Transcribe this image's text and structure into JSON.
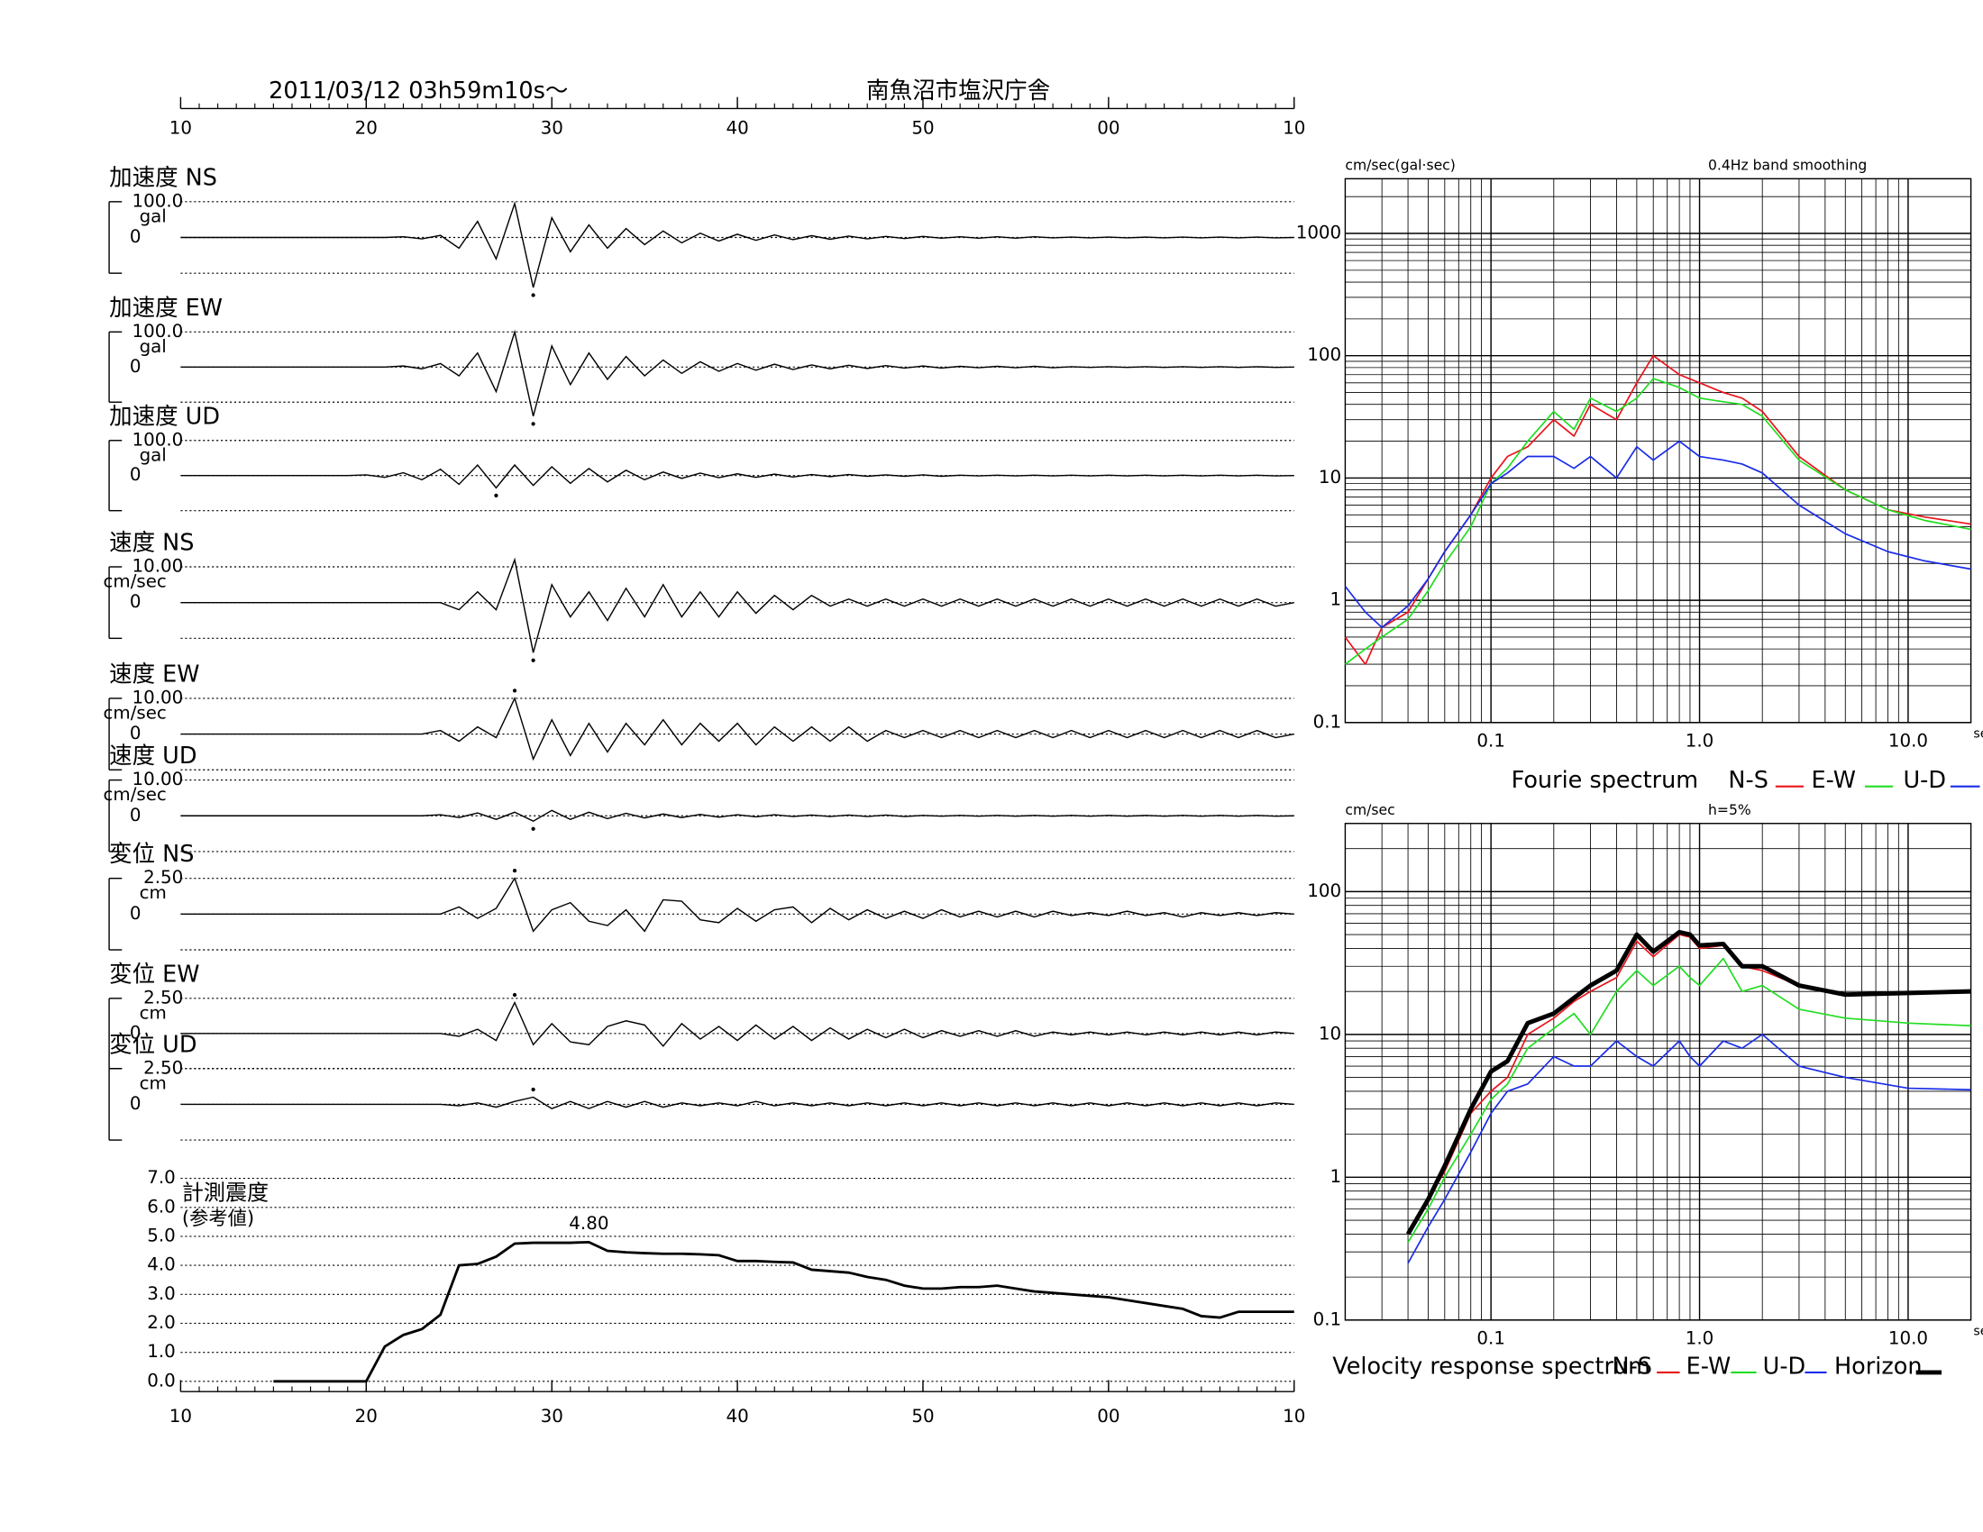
{
  "header": {
    "date": "2011/03/12  03h59m10s〜",
    "station": "南魚沼市塩沢庁舎"
  },
  "time_axis": {
    "xlim": [
      10,
      70
    ],
    "xticks": [
      10,
      20,
      30,
      40,
      50,
      {
        "value": 60,
        "label": "00"
      },
      {
        "value": 70,
        "label": "10"
      }
    ],
    "x": [
      10,
      11,
      12,
      13,
      14,
      15,
      16,
      17,
      18,
      19,
      20,
      21,
      22,
      23,
      24,
      25,
      26,
      27,
      28,
      29,
      30,
      31,
      32,
      33,
      34,
      35,
      36,
      37,
      38,
      39,
      40,
      41,
      42,
      43,
      44,
      45,
      46,
      47,
      48,
      49,
      50,
      51,
      52,
      53,
      54,
      55,
      56,
      57,
      58,
      59,
      60,
      61,
      62,
      63,
      64,
      65,
      66,
      67,
      68,
      69,
      70
    ]
  },
  "chart_data": [
    {
      "type": "trace",
      "title": "加速度 NS",
      "unit": "gal",
      "ylim": [
        -100,
        100
      ],
      "yticks": [
        0,
        {
          "value": 100,
          "label": "100.0"
        }
      ],
      "values": [
        0,
        0,
        0,
        0,
        0,
        0,
        0,
        0,
        0,
        0,
        0,
        0,
        2,
        -4,
        6,
        -30,
        45,
        -60,
        95,
        -140,
        55,
        -40,
        35,
        -30,
        25,
        -20,
        18,
        -15,
        12,
        -10,
        9,
        -8,
        7,
        -6,
        5,
        -5,
        4,
        -4,
        3,
        -3,
        3,
        -2,
        2,
        -2,
        2,
        -2,
        2,
        -1,
        1,
        -1,
        1,
        -1,
        1,
        -1,
        1,
        -1,
        1,
        -1,
        1,
        -1,
        0
      ]
    },
    {
      "type": "trace",
      "title": "加速度 EW",
      "unit": "gal",
      "ylim": [
        -100,
        100
      ],
      "yticks": [
        0,
        {
          "value": 100,
          "label": "100.0"
        }
      ],
      "values": [
        0,
        0,
        0,
        0,
        0,
        0,
        0,
        0,
        0,
        0,
        0,
        0,
        3,
        -5,
        10,
        -25,
        40,
        -70,
        100,
        -140,
        60,
        -50,
        40,
        -35,
        30,
        -25,
        20,
        -18,
        15,
        -12,
        10,
        -9,
        8,
        -7,
        6,
        -5,
        5,
        -4,
        4,
        -3,
        3,
        -3,
        2,
        -2,
        2,
        -2,
        2,
        -2,
        1,
        -1,
        1,
        -1,
        1,
        -1,
        1,
        -1,
        1,
        -1,
        1,
        -1,
        0
      ]
    },
    {
      "type": "trace",
      "title": "加速度 UD",
      "unit": "gal",
      "ylim": [
        -100,
        100
      ],
      "yticks": [
        0,
        {
          "value": 100,
          "label": "100.0"
        }
      ],
      "values": [
        0,
        0,
        0,
        0,
        0,
        0,
        0,
        0,
        0,
        0,
        2,
        -5,
        8,
        -12,
        18,
        -25,
        30,
        -35,
        30,
        -28,
        25,
        -22,
        20,
        -18,
        15,
        -12,
        10,
        -8,
        7,
        -6,
        5,
        -5,
        4,
        -4,
        3,
        -3,
        3,
        -2,
        2,
        -2,
        2,
        -2,
        1,
        -1,
        1,
        -1,
        1,
        -1,
        1,
        -1,
        1,
        -1,
        1,
        -1,
        1,
        -1,
        1,
        -1,
        1,
        -1,
        0
      ]
    },
    {
      "type": "trace",
      "title": "速度 NS",
      "unit": "cm/sec",
      "ylim": [
        -10,
        10
      ],
      "yticks": [
        0,
        {
          "value": 10,
          "label": "10.00"
        }
      ],
      "values": [
        0,
        0,
        0,
        0,
        0,
        0,
        0,
        0,
        0,
        0,
        0,
        0,
        0,
        0,
        0,
        -2,
        3,
        -2,
        12,
        -14,
        5,
        -4,
        3,
        -5,
        4,
        -4,
        5,
        -4,
        3,
        -4,
        3,
        -3,
        2,
        -2,
        2,
        -1,
        1,
        -1,
        1,
        -1,
        1,
        -1,
        1,
        -1,
        1,
        -1,
        1,
        -1,
        1,
        -1,
        1,
        -1,
        1,
        -1,
        1,
        -1,
        1,
        -1,
        1,
        -1,
        0
      ]
    },
    {
      "type": "trace",
      "title": "速度 EW",
      "unit": "cm/sec",
      "ylim": [
        -10,
        10
      ],
      "yticks": [
        0,
        {
          "value": 10,
          "label": "10.00"
        }
      ],
      "values": [
        0,
        0,
        0,
        0,
        0,
        0,
        0,
        0,
        0,
        0,
        0,
        0,
        0,
        0,
        1,
        -2,
        2,
        -1,
        10,
        -7,
        4,
        -6,
        3,
        -5,
        3,
        -3,
        4,
        -3,
        3,
        -2,
        3,
        -3,
        2,
        -2,
        2,
        -2,
        2,
        -2,
        1,
        -1,
        1,
        -1,
        1,
        -1,
        1,
        -1,
        1,
        -1,
        1,
        -1,
        1,
        -1,
        1,
        -1,
        1,
        -1,
        1,
        -1,
        1,
        -1,
        0
      ]
    },
    {
      "type": "trace",
      "title": "速度 UD",
      "unit": "cm/sec",
      "ylim": [
        -10,
        10
      ],
      "yticks": [
        0,
        {
          "value": 10,
          "label": "10.00"
        }
      ],
      "values": [
        0,
        0,
        0,
        0,
        0,
        0,
        0,
        0,
        0,
        0,
        0,
        0,
        0,
        0,
        0.3,
        -0.5,
        0.8,
        -1,
        1,
        -1.5,
        1.5,
        -1,
        1,
        -0.8,
        0.7,
        -0.6,
        0.5,
        -0.5,
        0.4,
        -0.4,
        0.3,
        -0.3,
        0.3,
        -0.2,
        0.2,
        -0.2,
        0.2,
        -0.2,
        0.2,
        -0.2,
        0.1,
        -0.1,
        0.1,
        -0.1,
        0.1,
        -0.1,
        0.1,
        -0.1,
        0.1,
        -0.1,
        0.1,
        -0.1,
        0.1,
        -0.1,
        0.1,
        -0.1,
        0.1,
        -0.1,
        0.1,
        -0.1,
        0
      ]
    },
    {
      "type": "trace",
      "title": "変位 NS",
      "unit": "cm",
      "ylim": [
        -2.5,
        2.5
      ],
      "yticks": [
        0,
        {
          "value": 2.5,
          "label": "2.50"
        }
      ],
      "values": [
        0,
        0,
        0,
        0,
        0,
        0,
        0,
        0,
        0,
        0,
        0,
        0,
        0,
        0,
        0,
        0.5,
        -0.3,
        0.4,
        2.5,
        -1.2,
        0.3,
        0.8,
        -0.5,
        -0.8,
        0.3,
        -1.2,
        1.0,
        0.9,
        -0.4,
        -0.6,
        0.4,
        -0.5,
        0.3,
        0.5,
        -0.6,
        0.4,
        -0.4,
        0.3,
        -0.3,
        0.2,
        -0.3,
        0.3,
        -0.2,
        0.2,
        -0.2,
        0.2,
        -0.2,
        0.2,
        -0.1,
        0.1,
        -0.1,
        0.2,
        -0.1,
        0.1,
        -0.2,
        0.1,
        -0.1,
        0.1,
        -0.1,
        0.1,
        0
      ]
    },
    {
      "type": "trace",
      "title": "変位 EW",
      "unit": "cm",
      "ylim": [
        -2.5,
        2.5
      ],
      "yticks": [
        0,
        {
          "value": 2.5,
          "label": "2.50"
        }
      ],
      "values": [
        0,
        0,
        0,
        0,
        0,
        0,
        0,
        0,
        0,
        0,
        0,
        0,
        0,
        0,
        0,
        -0.2,
        0.3,
        -0.5,
        2.2,
        -0.8,
        0.7,
        -0.6,
        -0.8,
        0.5,
        0.9,
        0.6,
        -0.9,
        0.7,
        -0.4,
        0.5,
        -0.5,
        0.6,
        -0.4,
        0.5,
        -0.5,
        0.4,
        -0.4,
        0.3,
        -0.3,
        0.3,
        -0.3,
        0.2,
        -0.2,
        0.2,
        -0.2,
        0.2,
        -0.2,
        0.1,
        -0.1,
        0.1,
        -0.1,
        0.1,
        -0.1,
        0.1,
        -0.1,
        0.1,
        -0.1,
        0.1,
        -0.1,
        0.1,
        0
      ]
    },
    {
      "type": "trace",
      "title": "変位 UD",
      "unit": "cm",
      "ylim": [
        -2.5,
        2.5
      ],
      "yticks": [
        0,
        {
          "value": 2.5,
          "label": "2.50"
        }
      ],
      "values": [
        0,
        0,
        0,
        0,
        0,
        0,
        0,
        0,
        0,
        0,
        0,
        0,
        0,
        0,
        0,
        -0.1,
        0.1,
        -0.2,
        0.2,
        0.5,
        -0.3,
        0.2,
        -0.3,
        0.2,
        -0.2,
        0.2,
        -0.2,
        0.1,
        -0.1,
        0.1,
        -0.1,
        0.2,
        -0.1,
        0.1,
        -0.1,
        0.1,
        -0.1,
        0.1,
        -0.1,
        0.1,
        -0.1,
        0.1,
        -0.1,
        0.1,
        -0.1,
        0.1,
        -0.1,
        0.1,
        -0.1,
        0.1,
        -0.1,
        0.1,
        -0.1,
        0.1,
        -0.1,
        0.1,
        -0.1,
        0.1,
        -0.1,
        0.1,
        0
      ]
    },
    {
      "type": "line",
      "title": "計測震度",
      "subtitle": "(参考値)",
      "annotation": "4.80",
      "ylim": [
        0,
        7
      ],
      "yticks": [
        {
          "value": 0,
          "label": "0.0"
        },
        {
          "value": 1,
          "label": "1.0"
        },
        {
          "value": 2,
          "label": "2.0"
        },
        {
          "value": 3,
          "label": "3.0"
        },
        {
          "value": 4,
          "label": "4.0"
        },
        {
          "value": 5,
          "label": "5.0"
        },
        {
          "value": 6,
          "label": "6.0"
        },
        {
          "value": 7,
          "label": "7.0"
        }
      ],
      "values": [
        null,
        null,
        null,
        null,
        null,
        0,
        0,
        0,
        0,
        0,
        0,
        1.2,
        1.6,
        1.8,
        2.3,
        4.0,
        4.05,
        4.3,
        4.75,
        4.78,
        4.78,
        4.78,
        4.8,
        4.5,
        4.45,
        4.42,
        4.4,
        4.4,
        4.38,
        4.35,
        4.15,
        4.15,
        4.12,
        4.1,
        3.85,
        3.8,
        3.75,
        3.6,
        3.5,
        3.3,
        3.2,
        3.2,
        3.25,
        3.25,
        3.3,
        3.2,
        3.1,
        3.05,
        3.0,
        2.95,
        2.9,
        2.8,
        2.7,
        2.6,
        2.5,
        2.25,
        2.2,
        2.4,
        2.4,
        2.4,
        2.4
      ]
    },
    {
      "type": "loglog",
      "title": "Fourie spectrum",
      "y_label": "cm/sec(gal·sec)",
      "x_label": "sec",
      "note": "0.4Hz band smoothing",
      "xlim": [
        0.02,
        20
      ],
      "ylim": [
        0.1,
        2800
      ],
      "xticks": [
        0.1,
        {
          "value": 1,
          "label": "1.0"
        },
        {
          "value": 10,
          "label": "10.0"
        }
      ],
      "yticks": [
        0.1,
        1,
        10,
        100,
        1000
      ],
      "grid": true,
      "x": [
        0.02,
        0.025,
        0.03,
        0.04,
        0.05,
        0.06,
        0.08,
        0.1,
        0.12,
        0.15,
        0.2,
        0.25,
        0.3,
        0.4,
        0.5,
        0.6,
        0.8,
        1,
        1.3,
        1.6,
        2,
        3,
        5,
        8,
        12,
        20
      ],
      "series": [
        {
          "name": "N-S",
          "color": "#e8141c",
          "values": [
            0.5,
            0.3,
            0.6,
            0.8,
            1.5,
            2.5,
            5,
            10,
            15,
            18,
            30,
            22,
            40,
            30,
            60,
            100,
            70,
            60,
            50,
            45,
            35,
            15,
            8,
            5.5,
            4.8,
            4.2
          ]
        },
        {
          "name": "E-W",
          "color": "#22dd22",
          "values": [
            0.3,
            0.4,
            0.5,
            0.7,
            1.2,
            2,
            4,
            9,
            12,
            20,
            35,
            25,
            45,
            35,
            45,
            65,
            55,
            45,
            42,
            40,
            32,
            14,
            8,
            5.5,
            4.5,
            3.8
          ]
        },
        {
          "name": "U-D",
          "color": "#1a2ce8",
          "values": [
            1.3,
            0.8,
            0.6,
            0.9,
            1.5,
            2.5,
            5,
            9,
            11,
            15,
            15,
            12,
            15,
            10,
            18,
            14,
            20,
            15,
            14,
            13,
            11,
            6,
            3.5,
            2.5,
            2.1,
            1.8
          ]
        }
      ]
    },
    {
      "type": "loglog",
      "title": "Velocity response spectrum",
      "y_label": "cm/sec",
      "x_label": "sec",
      "note": "h=5%",
      "xlim": [
        0.02,
        20
      ],
      "ylim": [
        0.1,
        300
      ],
      "xticks": [
        0.1,
        {
          "value": 1,
          "label": "1.0"
        },
        {
          "value": 10,
          "label": "10.0"
        }
      ],
      "yticks": [
        0.1,
        1,
        10,
        100
      ],
      "grid": true,
      "x": [
        0.04,
        0.05,
        0.06,
        0.08,
        0.1,
        0.12,
        0.15,
        0.2,
        0.25,
        0.3,
        0.4,
        0.5,
        0.6,
        0.8,
        0.9,
        1,
        1.3,
        1.6,
        2,
        3,
        5,
        10,
        20
      ],
      "series": [
        {
          "name": "N-S",
          "color": "#e8141c",
          "values": [
            0.4,
            0.7,
            1.1,
            2.8,
            4,
            5,
            10,
            13,
            17,
            20,
            25,
            45,
            35,
            50,
            48,
            40,
            42,
            30,
            28,
            22,
            19,
            19.5,
            20
          ]
        },
        {
          "name": "E-W",
          "color": "#22dd22",
          "values": [
            0.35,
            0.6,
            1.0,
            2.0,
            3.5,
            4.5,
            8,
            11,
            14,
            10,
            20,
            28,
            22,
            30,
            25,
            22,
            34,
            20,
            22,
            15,
            13,
            12,
            11.5
          ]
        },
        {
          "name": "U-D",
          "color": "#1a2ce8",
          "values": [
            0.25,
            0.45,
            0.7,
            1.5,
            2.8,
            4,
            4.5,
            7,
            6,
            6,
            9,
            7,
            6,
            9,
            7,
            6,
            9,
            8,
            10,
            6,
            5,
            4.2,
            4.1
          ]
        },
        {
          "name": "Horizon",
          "color": "#000000",
          "linewidth": 3.5,
          "values": [
            0.4,
            0.7,
            1.2,
            3,
            5.5,
            6.5,
            12,
            14,
            18,
            22,
            28,
            50,
            38,
            52,
            50,
            42,
            43,
            30,
            30,
            22,
            19,
            19.5,
            20
          ]
        }
      ]
    }
  ]
}
